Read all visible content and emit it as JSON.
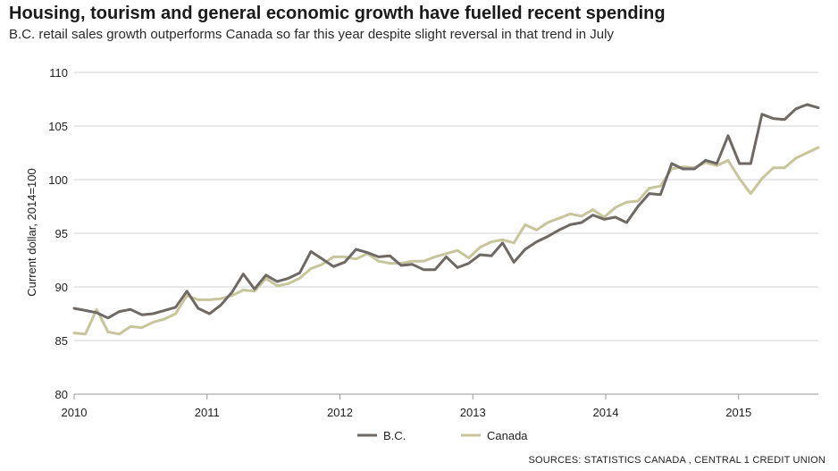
{
  "chart_data": {
    "type": "line",
    "title": "Housing, tourism and general economic growth have fuelled recent spending",
    "subtitle": "B.C. retail sales growth outperforms Canada so far this year despite slight reversal in that trend in July",
    "xlabel": "",
    "ylabel": "Current dollar, 2014=100",
    "ylim": [
      80,
      110
    ],
    "yticks": [
      "80",
      "85",
      "90",
      "95",
      "100",
      "105",
      "110"
    ],
    "xlim": [
      2010,
      2015.6
    ],
    "xticks": [
      "2010",
      "2011",
      "2012",
      "2013",
      "2014",
      "2015"
    ],
    "grid": true,
    "legend_position": "bottom-center",
    "series": [
      {
        "name": "B.C.",
        "color": "#6e6964",
        "values": [
          88.0,
          87.8,
          87.6,
          87.1,
          87.7,
          87.9,
          87.4,
          87.5,
          87.8,
          88.1,
          89.6,
          88.0,
          87.5,
          88.3,
          89.5,
          91.2,
          89.8,
          91.1,
          90.5,
          90.8,
          91.3,
          93.3,
          92.6,
          91.9,
          92.3,
          93.5,
          93.2,
          92.8,
          92.9,
          92.0,
          92.1,
          91.6,
          91.6,
          92.8,
          91.8,
          92.2,
          93.0,
          92.9,
          94.1,
          92.3,
          93.5,
          94.2,
          94.7,
          95.3,
          95.8,
          96.0,
          96.7,
          96.3,
          96.5,
          96.0,
          97.5,
          98.7,
          98.6,
          101.5,
          101.0,
          101.0,
          101.8,
          101.5,
          104.1,
          101.5,
          101.5,
          106.1,
          105.7,
          105.6,
          106.6,
          107.0,
          106.7
        ]
      },
      {
        "name": "Canada",
        "color": "#c7c59c",
        "values": [
          85.7,
          85.6,
          87.9,
          85.8,
          85.6,
          86.3,
          86.2,
          86.7,
          87.0,
          87.5,
          89.2,
          88.8,
          88.8,
          88.9,
          89.2,
          89.7,
          89.6,
          90.8,
          90.1,
          90.3,
          90.8,
          91.7,
          92.1,
          92.8,
          92.8,
          92.6,
          93.1,
          92.4,
          92.2,
          92.2,
          92.4,
          92.4,
          92.8,
          93.1,
          93.4,
          92.7,
          93.7,
          94.2,
          94.4,
          94.1,
          95.8,
          95.3,
          96.0,
          96.4,
          96.8,
          96.6,
          97.2,
          96.5,
          97.4,
          97.9,
          98.0,
          99.2,
          99.4,
          101.0,
          101.2,
          101.1,
          101.6,
          101.3,
          101.8,
          100.1,
          98.7,
          100.1,
          101.1,
          101.1,
          102.0,
          102.5,
          103.0
        ]
      }
    ]
  },
  "source": "SOURCES: STATISTICS CANADA , CENTRAL 1 CREDIT UNION"
}
